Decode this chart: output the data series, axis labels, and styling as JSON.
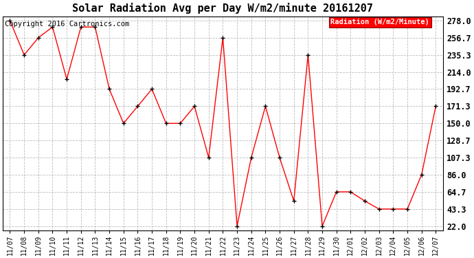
{
  "title": "Solar Radiation Avg per Day W/m2/minute 20161207",
  "copyright": "Copyright 2016 Cartronics.com",
  "legend_label": "Radiation (W/m2/Minute)",
  "labels": [
    "11/07",
    "11/08",
    "11/09",
    "11/10",
    "11/11",
    "11/12",
    "11/13",
    "11/14",
    "11/15",
    "11/16",
    "11/17",
    "11/18",
    "11/19",
    "11/20",
    "11/21",
    "11/22",
    "11/23",
    "11/24",
    "11/25",
    "11/26",
    "11/27",
    "11/28",
    "11/29",
    "11/30",
    "12/01",
    "12/02",
    "12/03",
    "12/04",
    "12/05",
    "12/06",
    "12/07"
  ],
  "values": [
    278.0,
    235.3,
    256.7,
    270.0,
    205.0,
    270.0,
    270.0,
    192.7,
    150.0,
    171.3,
    192.7,
    150.0,
    150.0,
    171.3,
    107.3,
    256.7,
    22.0,
    107.3,
    171.3,
    107.3,
    53.3,
    235.3,
    22.0,
    64.7,
    64.7,
    53.3,
    43.3,
    43.3,
    43.3,
    86.0,
    171.3
  ],
  "yticks": [
    22.0,
    43.3,
    64.7,
    86.0,
    107.3,
    128.7,
    150.0,
    171.3,
    192.7,
    214.0,
    235.3,
    256.7,
    278.0
  ],
  "line_color": "red",
  "marker_color": "black",
  "background_color": "#ffffff",
  "grid_color": "#bbbbbb",
  "title_fontsize": 11,
  "copyright_fontsize": 7.5,
  "ytick_fontsize": 8.5,
  "xtick_fontsize": 7,
  "legend_bg": "red",
  "legend_fg": "white",
  "legend_fontsize": 7.5,
  "figwidth": 6.9,
  "figheight": 3.75,
  "dpi": 100
}
